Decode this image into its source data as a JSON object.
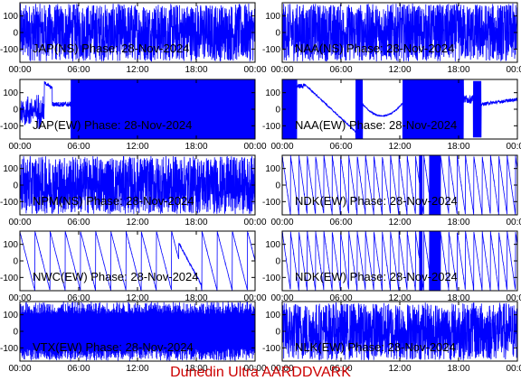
{
  "footer": "Dunedin Ultra AARDDVARK",
  "colors": {
    "trace": "#0000ff",
    "footer": "#cc0000",
    "axes": "#000000",
    "label": "#000000"
  },
  "chart_data": [
    {
      "type": "line",
      "title": "JAP(NS) Phase: 28-Nov-2024",
      "pattern": "noise_full",
      "ylim": [
        -180,
        180
      ],
      "yticks": [
        100,
        0,
        -100
      ],
      "xlim": [
        0,
        24
      ],
      "xticks": [
        "00:00",
        "06:00",
        "12:00",
        "18:00",
        "00:00"
      ]
    },
    {
      "type": "line",
      "title": "NAA(NS) Phase: 28-Nov-2024",
      "pattern": "noise_full",
      "ylim": [
        -180,
        180
      ],
      "yticks": [
        100,
        0,
        -100
      ],
      "xlim": [
        0,
        24
      ],
      "xticks": [
        "00:00",
        "06:00",
        "12:00",
        "18:00",
        "00:00"
      ]
    },
    {
      "type": "line",
      "title": "JAP(EW) Phase: 28-Nov-2024",
      "pattern": "jap_ew",
      "ylim": [
        -180,
        180
      ],
      "yticks": [
        100,
        0,
        -100
      ],
      "xlim": [
        0,
        24
      ],
      "xticks": [
        "00:00",
        "06:00",
        "12:00",
        "18:00",
        "00:00"
      ]
    },
    {
      "type": "line",
      "title": "NAA(EW) Phase: 28-Nov-2024",
      "pattern": "naa_ew",
      "ylim": [
        -180,
        180
      ],
      "yticks": [
        100,
        0,
        -100
      ],
      "xlim": [
        0,
        24
      ],
      "xticks": [
        "00:00",
        "06:00",
        "12:00",
        "18:00",
        "00:00"
      ]
    },
    {
      "type": "line",
      "title": "NPM(NS) Phase: 28-Nov-2024",
      "pattern": "noise_full",
      "ylim": [
        -180,
        180
      ],
      "yticks": [
        100,
        0,
        -100
      ],
      "xlim": [
        0,
        24
      ],
      "xticks": [
        "00:00",
        "06:00",
        "12:00",
        "18:00",
        "00:00"
      ]
    },
    {
      "type": "line",
      "title": "NDK(EW) Phase: 28-Nov-2024",
      "pattern": "sawtooth_fast",
      "ylim": [
        -180,
        180
      ],
      "yticks": [
        100,
        0,
        -100
      ],
      "xlim": [
        0,
        24
      ],
      "xticks": [
        "00:00",
        "06:00",
        "12:00",
        "18:00",
        "00:00"
      ]
    },
    {
      "type": "line",
      "title": "NWC(EW) Phase: 28-Nov-2024",
      "pattern": "sawtooth_slow",
      "ylim": [
        -180,
        180
      ],
      "yticks": [
        100,
        0,
        -100
      ],
      "xlim": [
        0,
        24
      ],
      "xticks": [
        "00:00",
        "06:00",
        "12:00",
        "18:00",
        "00:00"
      ]
    },
    {
      "type": "line",
      "title": "NDK(EW) Phase: 28-Nov-2024",
      "pattern": "sawtooth_fast",
      "ylim": [
        -180,
        180
      ],
      "yticks": [
        100,
        0,
        -100
      ],
      "xlim": [
        0,
        24
      ],
      "xticks": [
        "00:00",
        "06:00",
        "12:00",
        "18:00",
        "00:00"
      ]
    },
    {
      "type": "line",
      "title": "VTX(EW) Phase: 28-Nov-2024",
      "pattern": "solid",
      "ylim": [
        -180,
        180
      ],
      "yticks": [
        100,
        0,
        -100
      ],
      "xlim": [
        0,
        24
      ],
      "xticks": [
        "00:00",
        "06:00",
        "12:00",
        "18:00",
        "00:00"
      ]
    },
    {
      "type": "line",
      "title": "NLK(EW) Phase: 28-Nov-2024",
      "pattern": "noise_full",
      "ylim": [
        -180,
        180
      ],
      "yticks": [
        100,
        0,
        -100
      ],
      "xlim": [
        0,
        24
      ],
      "xticks": [
        "00:00",
        "06:00",
        "12:00",
        "18:00",
        "00:00"
      ]
    }
  ]
}
